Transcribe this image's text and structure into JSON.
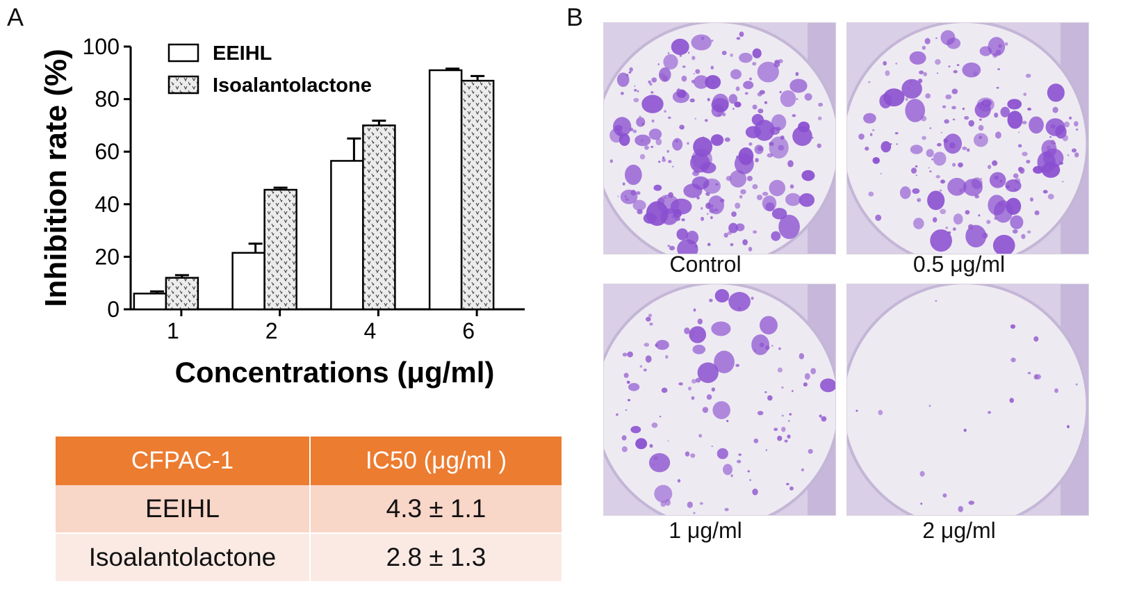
{
  "panels": {
    "a": "A",
    "b": "B"
  },
  "chart_data": {
    "type": "bar",
    "categories": [
      "1",
      "2",
      "4",
      "6"
    ],
    "series": [
      {
        "name": "EEIHL",
        "values": [
          6,
          21.5,
          56.5,
          91
        ],
        "errors": [
          0.8,
          3.5,
          8.5,
          0.6
        ]
      },
      {
        "name": "Isoalantolactone",
        "values": [
          12,
          45.5,
          70,
          87
        ],
        "errors": [
          1.0,
          0.8,
          1.8,
          1.8
        ]
      }
    ],
    "xlabel": "Concentrations  (μg/ml)",
    "ylabel": "Inhibition rate (%)",
    "ylim": [
      0,
      100
    ],
    "yticks": [
      "0",
      "20",
      "40",
      "60",
      "80",
      "100"
    ],
    "legend": "top-left",
    "colors": {
      "EEIHL": "#ffffff",
      "Isoalantolactone": "#e6e6e6",
      "stroke": "#000000"
    }
  },
  "table": {
    "header": [
      "CFPAC-1",
      "IC50 (μg/ml )"
    ],
    "rows": [
      [
        "EEIHL",
        "4.3 ± 1.1"
      ],
      [
        "Isoalantolactone",
        "2.8 ± 1.3"
      ]
    ],
    "colors": {
      "header": "#ec7c30",
      "row1": "#f8d6c8",
      "row2": "#fbeae4"
    }
  },
  "plates": [
    {
      "label": "Control",
      "density": 1.0
    },
    {
      "label": "0.5 μg/ml",
      "density": 0.8
    },
    {
      "label": "1 μg/ml",
      "density": 0.45
    },
    {
      "label": "2 μg/ml",
      "density": 0.04
    }
  ]
}
